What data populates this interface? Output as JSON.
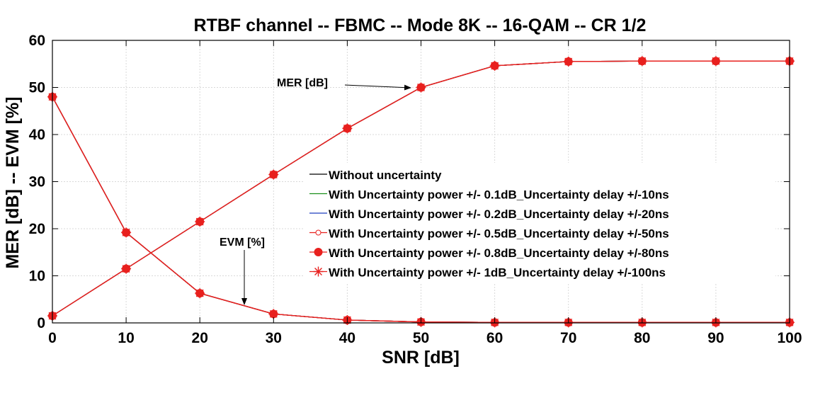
{
  "chart_data": {
    "type": "line",
    "title": "RTBF channel -- FBMC -- Mode 8K -- 16-QAM -- CR 1/2",
    "xlabel": "SNR [dB]",
    "ylabel": "MER [dB]  --  EVM [%]",
    "xlim": [
      0,
      100
    ],
    "ylim": [
      0,
      60
    ],
    "xticks": [
      0,
      10,
      20,
      30,
      40,
      50,
      60,
      70,
      80,
      90,
      100
    ],
    "yticks": [
      0,
      10,
      20,
      30,
      40,
      50,
      60
    ],
    "grid": true,
    "legend_position": "center-right",
    "x": [
      0,
      10,
      20,
      30,
      40,
      50,
      60,
      70,
      80,
      90,
      100
    ],
    "curves": {
      "mer": [
        1.5,
        11.5,
        21.5,
        31.5,
        41.3,
        50.0,
        54.6,
        55.5,
        55.6,
        55.6,
        55.6
      ],
      "evm": [
        48.0,
        19.2,
        6.3,
        1.9,
        0.6,
        0.2,
        0.1,
        0.1,
        0.1,
        0.1,
        0.1
      ]
    },
    "series": [
      {
        "name": "Without uncertainty",
        "color": "#000000",
        "marker": "none"
      },
      {
        "name": "With Uncertainty power +/- 0.1dB_Uncertainty delay +/-10ns",
        "color": "#1a8f1a",
        "marker": "none"
      },
      {
        "name": "With Uncertainty power +/- 0.2dB_Uncertainty delay +/-20ns",
        "color": "#1f3fbf",
        "marker": "none"
      },
      {
        "name": "With Uncertainty power +/- 0.5dB_Uncertainty delay +/-50ns",
        "color": "#e8201e",
        "marker": "open-circle"
      },
      {
        "name": "With Uncertainty power +/- 0.8dB_Uncertainty delay +/-80ns",
        "color": "#e8201e",
        "marker": "filled-circle"
      },
      {
        "name": "With Uncertainty power +/- 1dB_Uncertainty delay +/-100ns",
        "color": "#e8201e",
        "marker": "asterisk"
      }
    ],
    "annotations": [
      {
        "text": "MER [dB]",
        "points_to": {
          "x": 50,
          "y": 50
        }
      },
      {
        "text": "EVM [%]",
        "points_to": {
          "x": 26,
          "y": 3.5
        }
      }
    ]
  }
}
